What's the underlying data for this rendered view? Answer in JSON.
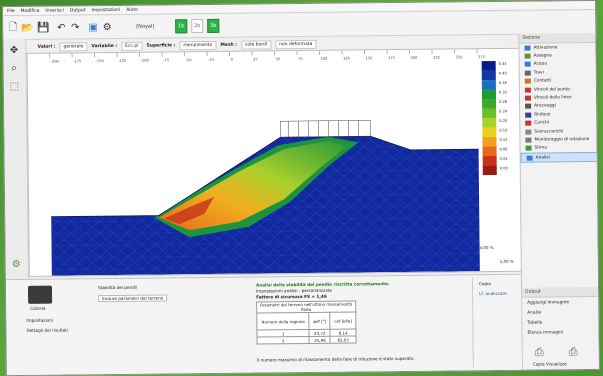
{
  "menu": [
    "File",
    "Modifica",
    "Inserisci",
    "Output",
    "Impostazioni",
    "Aiuto"
  ],
  "stages": {
    "label": "[Noyal]",
    "values": [
      "1b",
      "2b",
      "3b"
    ]
  },
  "filters": {
    "valori_label": "Valori :",
    "valori": "generale",
    "variabile_label": "Variabile :",
    "variabile": "Ecc.pl",
    "superficie_label": "Superficie :",
    "superficie": "riempimento",
    "mesh_label": "Mesh :",
    "mesh": "sole bordi",
    "deform": "non deformata"
  },
  "legend_values": [
    "0.44",
    "0.40",
    "0.36",
    "0.32",
    "0.28",
    "0.24",
    "0.20",
    "0.16",
    "0.12",
    "0.08",
    "0.04",
    "0.00"
  ],
  "legend_colors": [
    "#0b1d8a",
    "#123aa3",
    "#1a6fc0",
    "#1d9a3a",
    "#3aaa2a",
    "#6cbf2a",
    "#a9d02b",
    "#e6d020",
    "#f0a020",
    "#e66a1a",
    "#c8321a",
    "#9a1a14"
  ],
  "ruler_ticks": [
    "-200",
    "-175",
    "-150",
    "-125",
    "-100",
    "-75",
    "-50",
    "-25",
    "0",
    "25",
    "50",
    "75",
    "100",
    "125",
    "150",
    "175",
    "200",
    "225",
    "250",
    "275"
  ],
  "right_panel": {
    "header": "Sezione",
    "items": [
      {
        "label": "Attivazione",
        "color": "#3a7bd5"
      },
      {
        "label": "Assegna",
        "color": "#6a8f3a"
      },
      {
        "label": "Acqua",
        "color": "#2a7fd8"
      },
      {
        "label": "Travi",
        "color": "#666666"
      },
      {
        "label": "Contatti",
        "color": "#b87d2a"
      },
      {
        "label": "Vincoli del punto",
        "color": "#cc3333"
      },
      {
        "label": "Vincoli della linea",
        "color": "#cc3333"
      },
      {
        "label": "Ancoraggi",
        "color": "#555555"
      },
      {
        "label": "Rinforzi",
        "color": "#3a3a9a"
      },
      {
        "label": "Carichi",
        "color": "#cc3333"
      },
      {
        "label": "Sovraccarichi",
        "color": "#888888"
      },
      {
        "label": "Monitoraggio di rotazione",
        "color": "#7a7a7a"
      },
      {
        "label": "Stima",
        "color": "#3a9a3a"
      },
      {
        "label": "Analisi",
        "color": "#3a7bd5"
      }
    ],
    "selected_index": 13,
    "bottom_header": "Output",
    "bottom_items": [
      "Aggiungi immagine",
      "Analisi",
      "Tabelle",
      "Elenca immagini"
    ],
    "bottom_buttons": [
      "Copia Visualizza"
    ]
  },
  "bottom_panel": {
    "left_buttons": [
      "Calcola",
      "Impostazioni",
      "Dettagli dei risultati"
    ],
    "middle_title": "Stabilità dei pendii",
    "middle_item": "Endure parametri del terreno",
    "analysis_title": "Analisi della stabilità del pendio riscritta correttamente.",
    "line1": "Impostazioni analisi : personalizzate",
    "line2": "Fattore di sicurezza FS = 1,46",
    "table_caption": "Parametri del terreno nell'ultimo rilassamento finito",
    "table_headers": [
      "Numero della regione",
      "φef [°]",
      "cef [kPa]"
    ],
    "table_rows": [
      [
        "1",
        "23,72",
        "8,14"
      ],
      [
        "2",
        "25,96",
        "82,07"
      ]
    ],
    "footnote": "Il numero massimo di rilassamento della fase di riduzione è stato superato.",
    "right_title": "Copia",
    "right_item": "Lf: analizzare"
  },
  "canvas_bottom": {
    "scale": "4,00 %",
    "zoom": "1,00 %"
  }
}
